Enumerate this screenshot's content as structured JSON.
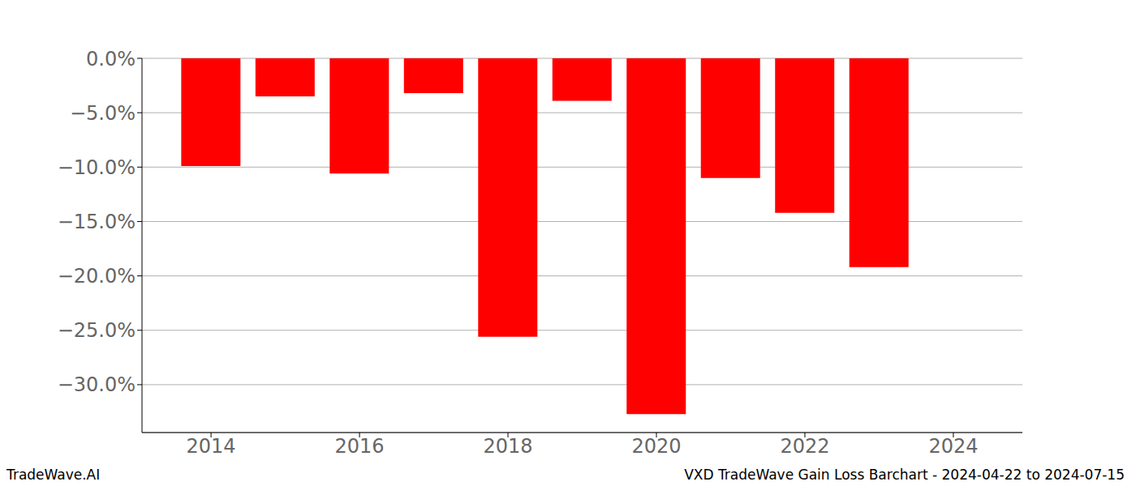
{
  "chart_data": {
    "type": "bar",
    "title": "VXD TradeWave Gain Loss Barchart - 2024-04-22 to 2024-07-15",
    "annotations": [
      "TradeWave.AI"
    ],
    "x": [
      2014,
      2015,
      2016,
      2017,
      2018,
      2019,
      2020,
      2021,
      2022,
      2023
    ],
    "values": [
      -9.9,
      -3.5,
      -10.6,
      -3.2,
      -25.6,
      -3.9,
      -32.7,
      -11.0,
      -14.2,
      -19.2
    ],
    "color": "#ff0000",
    "xlim": [
      2013.07,
      2024.93
    ],
    "xticks": [
      2014,
      2016,
      2018,
      2020,
      2022,
      2024
    ],
    "ylim": [
      -34.4,
      0
    ],
    "yticks": [
      {
        "value": 0,
        "label": "0.0%"
      },
      {
        "value": -5,
        "label": "−5.0%"
      },
      {
        "value": -10,
        "label": "−10.0%"
      },
      {
        "value": -15,
        "label": "−15.0%"
      },
      {
        "value": -20,
        "label": "−20.0%"
      },
      {
        "value": -25,
        "label": "−25.0%"
      },
      {
        "value": -30,
        "label": "−30.0%"
      }
    ],
    "grid": true
  }
}
